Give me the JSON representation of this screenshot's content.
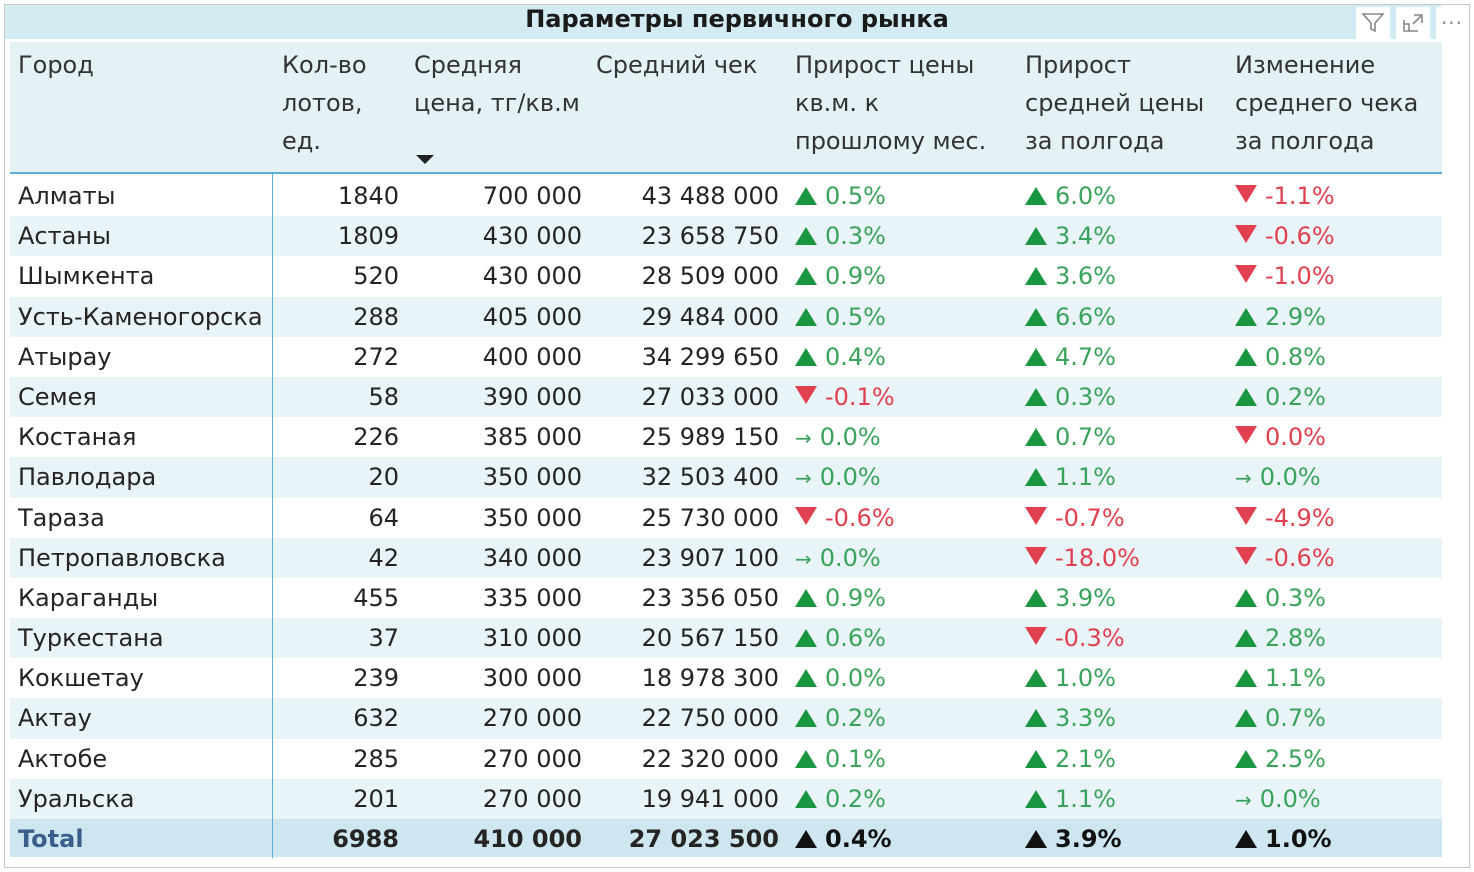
{
  "title": "Параметры первичного рынка",
  "toolbar": {
    "filter_icon": "filter-icon",
    "focus_icon": "focus-mode-icon",
    "more_icon": "more-options-icon"
  },
  "colors": {
    "up": "#1a9641",
    "down": "#e0404f",
    "text_positive": "#3aa35b",
    "header_bg": "#e4f2f6",
    "alt_row": "#e8f4f8",
    "total_bg": "#cde6f0"
  },
  "columns": [
    "Город",
    "Кол-во лотов, ед.",
    "Средняя цена, тг/кв.м",
    "Средний чек",
    "Прирост цены кв.м. к прошлому мес.",
    "Прирост средней цены за полгода",
    "Изменение среднего чека за полгода"
  ],
  "column_lines": [
    [
      "Город"
    ],
    [
      "Кол-во",
      "лотов,",
      "ед."
    ],
    [
      "Средняя",
      "цена, тг/кв.м"
    ],
    [
      "Средний чек"
    ],
    [
      "Прирост цены",
      "кв.м. к",
      "прошлому мес."
    ],
    [
      "Прирост",
      "средней цены",
      "за полгода"
    ],
    [
      "Изменение",
      "среднего чека",
      "за полгода"
    ]
  ],
  "sorted_column": "Средняя цена, тг/кв.м",
  "rows": [
    {
      "city": "Алматы",
      "count": "1840",
      "price": "700 000",
      "check": "43 488 000",
      "k1": [
        "up",
        "0.5%"
      ],
      "k2": [
        "up",
        "6.0%"
      ],
      "k3": [
        "down",
        "-1.1%"
      ]
    },
    {
      "city": "Астаны",
      "count": "1809",
      "price": "430 000",
      "check": "23 658 750",
      "k1": [
        "up",
        "0.3%"
      ],
      "k2": [
        "up",
        "3.4%"
      ],
      "k3": [
        "down",
        "-0.6%"
      ]
    },
    {
      "city": "Шымкента",
      "count": "520",
      "price": "430 000",
      "check": "28 509 000",
      "k1": [
        "up",
        "0.9%"
      ],
      "k2": [
        "up",
        "3.6%"
      ],
      "k3": [
        "down",
        "-1.0%"
      ]
    },
    {
      "city": "Усть-Каменогорска",
      "count": "288",
      "price": "405 000",
      "check": "29 484 000",
      "k1": [
        "up",
        "0.5%"
      ],
      "k2": [
        "up",
        "6.6%"
      ],
      "k3": [
        "up",
        "2.9%"
      ]
    },
    {
      "city": "Атырау",
      "count": "272",
      "price": "400 000",
      "check": "34 299 650",
      "k1": [
        "up",
        "0.4%"
      ],
      "k2": [
        "up",
        "4.7%"
      ],
      "k3": [
        "up",
        "0.8%"
      ]
    },
    {
      "city": "Семея",
      "count": "58",
      "price": "390 000",
      "check": "27 033 000",
      "k1": [
        "down",
        "-0.1%"
      ],
      "k2": [
        "up",
        "0.3%"
      ],
      "k3": [
        "up",
        "0.2%"
      ]
    },
    {
      "city": "Костаная",
      "count": "226",
      "price": "385 000",
      "check": "25 989 150",
      "k1": [
        "flat",
        "0.0%"
      ],
      "k2": [
        "up",
        "0.7%"
      ],
      "k3": [
        "down",
        "0.0%"
      ]
    },
    {
      "city": "Павлодара",
      "count": "20",
      "price": "350 000",
      "check": "32 503 400",
      "k1": [
        "flat",
        "0.0%"
      ],
      "k2": [
        "up",
        "1.1%"
      ],
      "k3": [
        "flat",
        "0.0%"
      ]
    },
    {
      "city": "Тараза",
      "count": "64",
      "price": "350 000",
      "check": "25 730 000",
      "k1": [
        "down",
        "-0.6%"
      ],
      "k2": [
        "down",
        "-0.7%"
      ],
      "k3": [
        "down",
        "-4.9%"
      ]
    },
    {
      "city": "Петропавловска",
      "count": "42",
      "price": "340 000",
      "check": "23 907 100",
      "k1": [
        "flat",
        "0.0%"
      ],
      "k2": [
        "down",
        "-18.0%"
      ],
      "k3": [
        "down",
        "-0.6%"
      ]
    },
    {
      "city": "Караганды",
      "count": "455",
      "price": "335 000",
      "check": "23 356 050",
      "k1": [
        "up",
        "0.9%"
      ],
      "k2": [
        "up",
        "3.9%"
      ],
      "k3": [
        "up",
        "0.3%"
      ]
    },
    {
      "city": "Туркестана",
      "count": "37",
      "price": "310 000",
      "check": "20 567 150",
      "k1": [
        "up",
        "0.6%"
      ],
      "k2": [
        "down",
        "-0.3%"
      ],
      "k3": [
        "up",
        "2.8%"
      ]
    },
    {
      "city": "Кокшетау",
      "count": "239",
      "price": "300 000",
      "check": "18 978 300",
      "k1": [
        "up",
        "0.0%"
      ],
      "k2": [
        "up",
        "1.0%"
      ],
      "k3": [
        "up",
        "1.1%"
      ]
    },
    {
      "city": "Актау",
      "count": "632",
      "price": "270 000",
      "check": "22 750 000",
      "k1": [
        "up",
        "0.2%"
      ],
      "k2": [
        "up",
        "3.3%"
      ],
      "k3": [
        "up",
        "0.7%"
      ]
    },
    {
      "city": "Актобе",
      "count": "285",
      "price": "270 000",
      "check": "22 320 000",
      "k1": [
        "up",
        "0.1%"
      ],
      "k2": [
        "up",
        "2.1%"
      ],
      "k3": [
        "up",
        "2.5%"
      ]
    },
    {
      "city": "Уральска",
      "count": "201",
      "price": "270 000",
      "check": "19 941 000",
      "k1": [
        "up",
        "0.2%"
      ],
      "k2": [
        "up",
        "1.1%"
      ],
      "k3": [
        "flat",
        "0.0%"
      ]
    }
  ],
  "total": {
    "city": "Total",
    "count": "6988",
    "price": "410 000",
    "check": "27 023 500",
    "k1": [
      "up",
      "0.4%"
    ],
    "k2": [
      "up",
      "3.9%"
    ],
    "k3": [
      "up",
      "1.0%"
    ]
  }
}
